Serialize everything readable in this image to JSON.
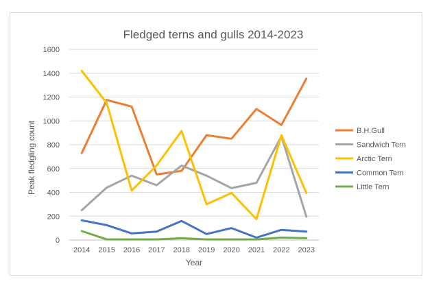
{
  "chart_data": {
    "type": "line",
    "title": "Fledged terns and gulls 2014-2023",
    "xlabel": "Year",
    "ylabel": "Peak fledgling count",
    "categories": [
      "2014",
      "2015",
      "2016",
      "2017",
      "2018",
      "2019",
      "2020",
      "2021",
      "2022",
      "2023"
    ],
    "ylim": [
      0,
      1600
    ],
    "yticks": [
      0,
      200,
      400,
      600,
      800,
      1000,
      1200,
      1400,
      1600
    ],
    "grid": "horizontal",
    "legend_position": "right",
    "series": [
      {
        "name": "B.H.Gull",
        "color": "#ED7D31",
        "values": [
          730,
          1175,
          1120,
          550,
          580,
          880,
          850,
          1100,
          965,
          1355
        ]
      },
      {
        "name": "Sandwich Tern",
        "color": "#A5A5A5",
        "values": [
          250,
          440,
          540,
          460,
          625,
          540,
          435,
          480,
          870,
          195
        ]
      },
      {
        "name": "Arctic Tern",
        "color": "#FFC000",
        "values": [
          1420,
          1150,
          415,
          625,
          915,
          300,
          395,
          175,
          880,
          395
        ]
      },
      {
        "name": "Common Tern",
        "color": "#4472C4",
        "values": [
          165,
          125,
          55,
          70,
          160,
          50,
          100,
          20,
          85,
          70
        ]
      },
      {
        "name": "Little Tern",
        "color": "#70AD47",
        "values": [
          75,
          5,
          5,
          5,
          15,
          5,
          5,
          5,
          20,
          15
        ]
      }
    ]
  }
}
